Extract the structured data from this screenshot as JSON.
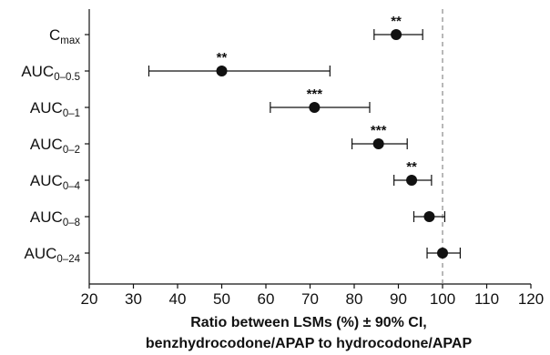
{
  "chart_data": {
    "type": "forest",
    "title": "",
    "xlabel": [
      "Ratio between LSMs (%) ± 90% CI,",
      "benzhydrocodone/APAP to hydrocodone/APAP"
    ],
    "ylabel": "",
    "xlim": [
      20,
      120
    ],
    "xticks": [
      20,
      30,
      40,
      50,
      60,
      70,
      80,
      90,
      100,
      110,
      120
    ],
    "reference_line": 100,
    "grid": false,
    "colors": {
      "marker": "#111111",
      "reference_line": "#888888"
    },
    "categories": [
      {
        "label_main": "C",
        "label_sub": "max"
      },
      {
        "label_main": "AUC",
        "label_sub": "0–0.5"
      },
      {
        "label_main": "AUC",
        "label_sub": "0–1"
      },
      {
        "label_main": "AUC",
        "label_sub": "0–2"
      },
      {
        "label_main": "AUC",
        "label_sub": "0–4"
      },
      {
        "label_main": "AUC",
        "label_sub": "0–8"
      },
      {
        "label_main": "AUC",
        "label_sub": "0–24"
      }
    ],
    "points": [
      {
        "value": 89.5,
        "ci_low": 84.5,
        "ci_high": 95.5,
        "significance": "**"
      },
      {
        "value": 50.0,
        "ci_low": 33.5,
        "ci_high": 74.5,
        "significance": "**"
      },
      {
        "value": 71.0,
        "ci_low": 61.0,
        "ci_high": 83.5,
        "significance": "***"
      },
      {
        "value": 85.5,
        "ci_low": 79.5,
        "ci_high": 92.0,
        "significance": "***"
      },
      {
        "value": 93.0,
        "ci_low": 89.0,
        "ci_high": 97.5,
        "significance": "**"
      },
      {
        "value": 97.0,
        "ci_low": 93.5,
        "ci_high": 100.5,
        "significance": ""
      },
      {
        "value": 100.0,
        "ci_low": 96.5,
        "ci_high": 104.0,
        "significance": ""
      }
    ]
  }
}
